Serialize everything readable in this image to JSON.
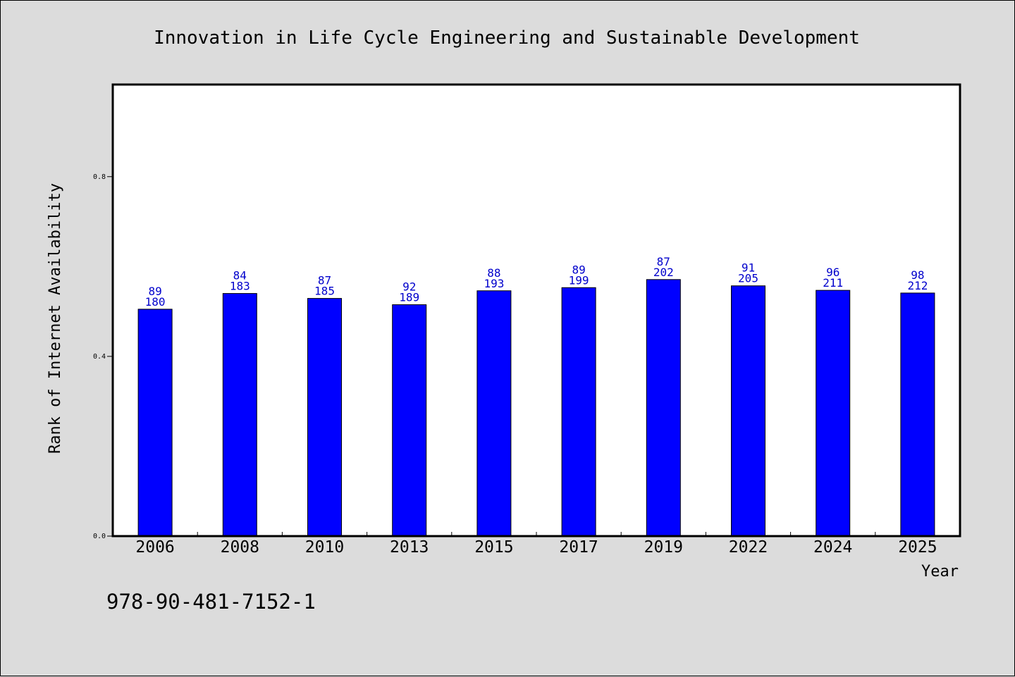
{
  "chart_data": {
    "type": "bar",
    "title": "Innovation in Life Cycle Engineering and Sustainable Development",
    "xlabel": "Year",
    "ylabel": "Rank of Internet Availability",
    "categories": [
      "2006",
      "2008",
      "2010",
      "2013",
      "2015",
      "2017",
      "2019",
      "2022",
      "2024",
      "2025"
    ],
    "series": [
      {
        "values": [
          0.505,
          0.54,
          0.529,
          0.515,
          0.546,
          0.553,
          0.571,
          0.557,
          0.547,
          0.541
        ],
        "label_top": [
          "89",
          "84",
          "87",
          "92",
          "88",
          "89",
          "87",
          "91",
          "96",
          "98"
        ],
        "label_bottom": [
          "180",
          "183",
          "185",
          "189",
          "193",
          "199",
          "202",
          "205",
          "211",
          "212"
        ],
        "color": "#0000ff"
      }
    ],
    "ylim": [
      0,
      1.005
    ],
    "yticks": [
      0.0,
      0.4,
      0.8
    ],
    "ytick_labels": [
      "0.0",
      "0.4",
      "0.8"
    ],
    "grid": false,
    "legend": "none"
  },
  "footer": {
    "isbn": "978-90-481-7152-1"
  }
}
